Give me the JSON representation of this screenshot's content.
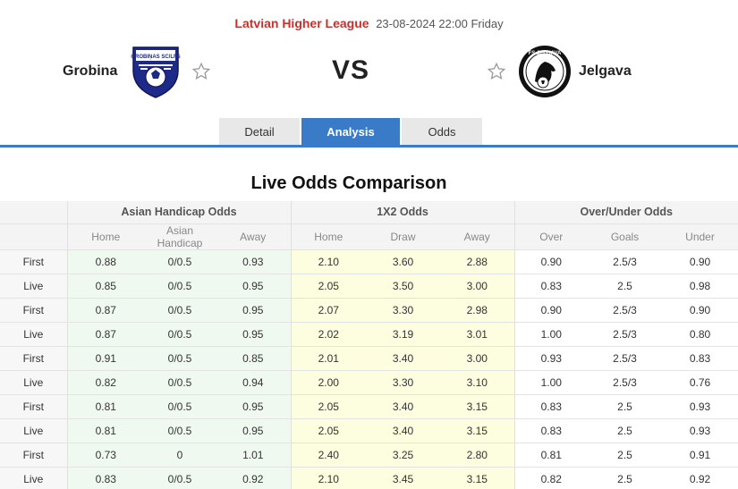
{
  "match": {
    "league": "Latvian Higher League",
    "datetime": "23-08-2024 22:00 Friday",
    "home_team": "Grobina",
    "away_team": "Jelgava",
    "vs_label": "VS",
    "home_logo_text": "GROBIŅAS SC/LFS",
    "away_logo_text": "FS JELGAVA"
  },
  "tabs": [
    {
      "label": "Detail",
      "active": false
    },
    {
      "label": "Analysis",
      "active": true
    },
    {
      "label": "Odds",
      "active": false
    }
  ],
  "section_title": "Live Odds Comparison",
  "table": {
    "groups": [
      "Asian Handicap Odds",
      "1X2 Odds",
      "Over/Under Odds"
    ],
    "subheaders": [
      "Home",
      "Asian Handicap",
      "Away",
      "Home",
      "Draw",
      "Away",
      "Over",
      "Goals",
      "Under"
    ],
    "rows": [
      {
        "type": "First",
        "cells": [
          "0.88",
          "0/0.5",
          "0.93",
          "2.10",
          "3.60",
          "2.88",
          "0.90",
          "2.5/3",
          "0.90"
        ]
      },
      {
        "type": "Live",
        "cells": [
          "0.85",
          "0/0.5",
          "0.95",
          "2.05",
          "3.50",
          "3.00",
          "0.83",
          "2.5",
          "0.98"
        ]
      },
      {
        "type": "First",
        "cells": [
          "0.87",
          "0/0.5",
          "0.95",
          "2.07",
          "3.30",
          "2.98",
          "0.90",
          "2.5/3",
          "0.90"
        ]
      },
      {
        "type": "Live",
        "cells": [
          "0.87",
          "0/0.5",
          "0.95",
          "2.02",
          "3.19",
          "3.01",
          "1.00",
          "2.5/3",
          "0.80"
        ]
      },
      {
        "type": "First",
        "cells": [
          "0.91",
          "0/0.5",
          "0.85",
          "2.01",
          "3.40",
          "3.00",
          "0.93",
          "2.5/3",
          "0.83"
        ]
      },
      {
        "type": "Live",
        "cells": [
          "0.82",
          "0/0.5",
          "0.94",
          "2.00",
          "3.30",
          "3.10",
          "1.00",
          "2.5/3",
          "0.76"
        ]
      },
      {
        "type": "First",
        "cells": [
          "0.81",
          "0/0.5",
          "0.95",
          "2.05",
          "3.40",
          "3.15",
          "0.83",
          "2.5",
          "0.93"
        ]
      },
      {
        "type": "Live",
        "cells": [
          "0.81",
          "0/0.5",
          "0.95",
          "2.05",
          "3.40",
          "3.15",
          "0.83",
          "2.5",
          "0.93"
        ]
      },
      {
        "type": "First",
        "cells": [
          "0.73",
          "0",
          "1.01",
          "2.40",
          "3.25",
          "2.80",
          "0.81",
          "2.5",
          "0.91"
        ]
      },
      {
        "type": "Live",
        "cells": [
          "0.83",
          "0/0.5",
          "0.92",
          "2.10",
          "3.45",
          "3.15",
          "0.82",
          "2.5",
          "0.92"
        ]
      }
    ]
  },
  "icons": {
    "favorite": "star-outline-icon"
  },
  "colors": {
    "league": "#c9302c",
    "accent": "#3a7bc8",
    "asian_bg": "#f0f9f0",
    "x12_bg": "#fdfde0"
  }
}
